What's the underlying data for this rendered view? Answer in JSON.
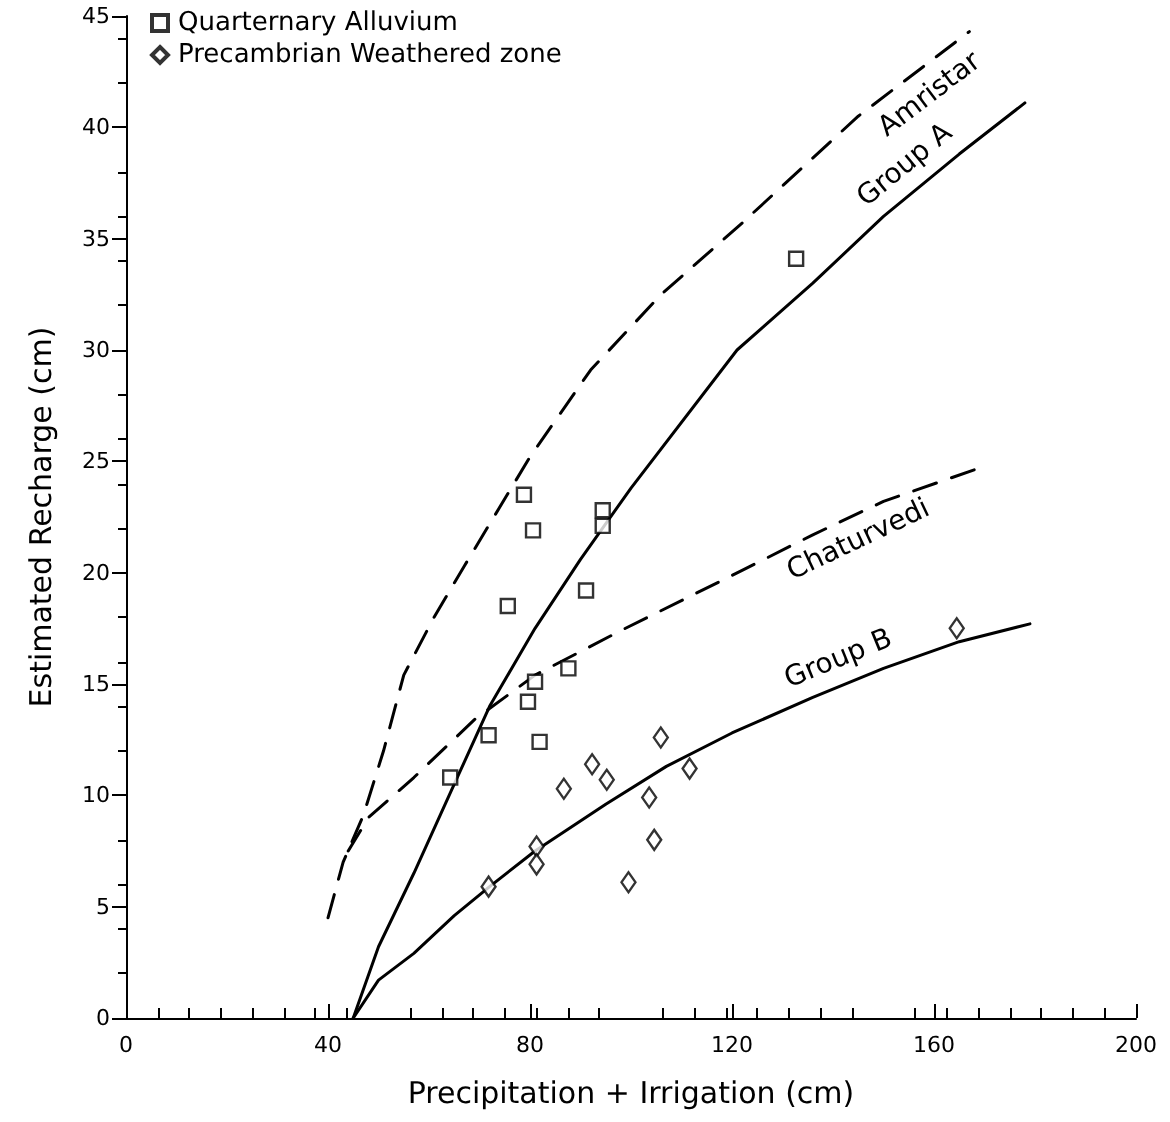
{
  "chart_data": {
    "type": "scatter",
    "xlabel": "Precipitation + Irrigation (cm)",
    "ylabel": "Estimated Recharge (cm)",
    "xlim": [
      0,
      200
    ],
    "xticks": [
      0,
      40,
      80,
      120,
      160,
      200
    ],
    "ylim": [
      0,
      45
    ],
    "yticks": [
      0,
      5,
      10,
      15,
      20,
      25,
      30,
      35,
      40,
      45
    ],
    "grid": false,
    "legend": "top left",
    "series": [
      {
        "name": "Quarternary Alluvium",
        "marker": "square",
        "color": "#000000",
        "x": [
          64.2,
          71.8,
          75.6,
          79.6,
          81,
          81.9,
          87.6,
          91.1,
          78.8,
          80.6,
          94.4,
          94.4,
          132.7
        ],
        "values": [
          10.8,
          12.7,
          18.5,
          14.2,
          15.1,
          12.4,
          15.7,
          19.2,
          23.5,
          21.9,
          22.8,
          22.1,
          34.1
        ]
      },
      {
        "name": "Precambrian Weathered zone",
        "marker": "diamond",
        "color": "#000000",
        "x": [
          71.8,
          81.3,
          81.3,
          86.7,
          92.3,
          95.2,
          99.5,
          103.6,
          104.6,
          105.9,
          111.6,
          164.5
        ],
        "values": [
          5.9,
          7.7,
          6.9,
          10.3,
          11.4,
          10.7,
          6.1,
          9.9,
          8,
          12.6,
          11.2,
          17.5
        ]
      },
      {
        "name": "Amristar",
        "type": "line",
        "line_style": "dashed",
        "marker": "none",
        "color": "#000000",
        "x": [
          40,
          43,
          47,
          51,
          55,
          61,
          67,
          80,
          92,
          106,
          122,
          145,
          167
        ],
        "values": [
          4.5,
          7,
          9.1,
          12,
          15.4,
          18,
          20.3,
          25.2,
          29.1,
          32.5,
          35.7,
          40.5,
          44.3
        ]
      },
      {
        "name": "Group A",
        "type": "line",
        "line_style": "solid",
        "marker": "none",
        "color": "#000000",
        "x": [
          45,
          50,
          57,
          65,
          72,
          81,
          90,
          100,
          121,
          136,
          150,
          165,
          178
        ],
        "values": [
          0,
          3.2,
          6.5,
          10.5,
          14,
          17.5,
          20.6,
          23.8,
          30,
          33,
          36,
          38.8,
          41.1
        ]
      },
      {
        "name": "Chaturvedi",
        "type": "line",
        "line_style": "dashed",
        "marker": "none",
        "color": "#000000",
        "x": [
          44,
          48,
          57,
          69,
          81,
          98,
          122,
          136,
          150,
          169
        ],
        "values": [
          7.5,
          9,
          10.8,
          13.4,
          15.4,
          17.4,
          20.1,
          21.7,
          23.2,
          24.7
        ]
      },
      {
        "name": "Group B",
        "type": "line",
        "line_style": "solid",
        "marker": "none",
        "color": "#000000",
        "x": [
          45,
          50,
          57,
          65,
          72,
          81,
          95,
          107,
          120,
          136,
          150,
          165,
          179
        ],
        "values": [
          0,
          1.7,
          2.9,
          4.6,
          5.9,
          7.5,
          9.6,
          11.3,
          12.8,
          14.4,
          15.7,
          16.9,
          17.7
        ]
      }
    ]
  }
}
